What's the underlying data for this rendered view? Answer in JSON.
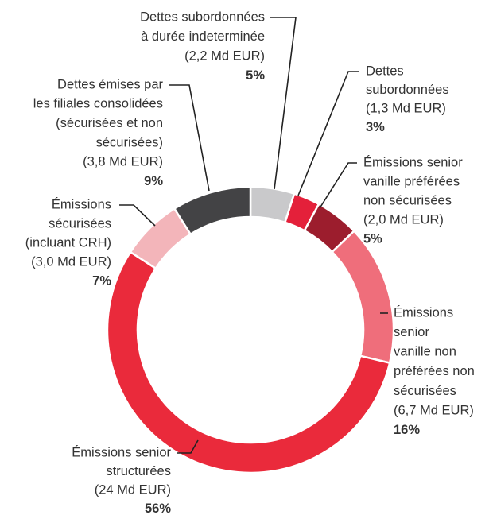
{
  "chart_data": {
    "type": "donut",
    "categories": [
      [
        "Dettes subordonnées",
        "à durée indeterminée",
        "(2,2 Md EUR)"
      ],
      [
        "Dettes",
        "subordonnées",
        "(1,3 Md EUR)"
      ],
      [
        "Émissions senior",
        "vanille préférées",
        "non sécurisées",
        "(2,0 Md EUR)"
      ],
      [
        "Émissions",
        "senior",
        "vanille non",
        "préférées non",
        "sécurisées",
        "(6,7 Md EUR)"
      ],
      [
        "Émissions senior",
        "structurées",
        "(24 Md EUR)"
      ],
      [
        "Émissions",
        "sécurisées",
        "(incluant CRH)",
        "(3,0 Md EUR)"
      ],
      [
        "Dettes émises par",
        "les filiales consolidées",
        "(sécurisées et non",
        "sécurisées)",
        "(3,8 Md EUR)"
      ]
    ],
    "values": [
      5,
      3,
      5,
      16,
      56,
      7,
      9
    ],
    "value_labels": [
      "5%",
      "3%",
      "5%",
      "16%",
      "56%",
      "7%",
      "9%"
    ],
    "colors": [
      "#c9c9cb",
      "#e4203a",
      "#9c1d2d",
      "#ef6e7b",
      "#ea2a3b",
      "#f3b5ba",
      "#434345"
    ]
  }
}
